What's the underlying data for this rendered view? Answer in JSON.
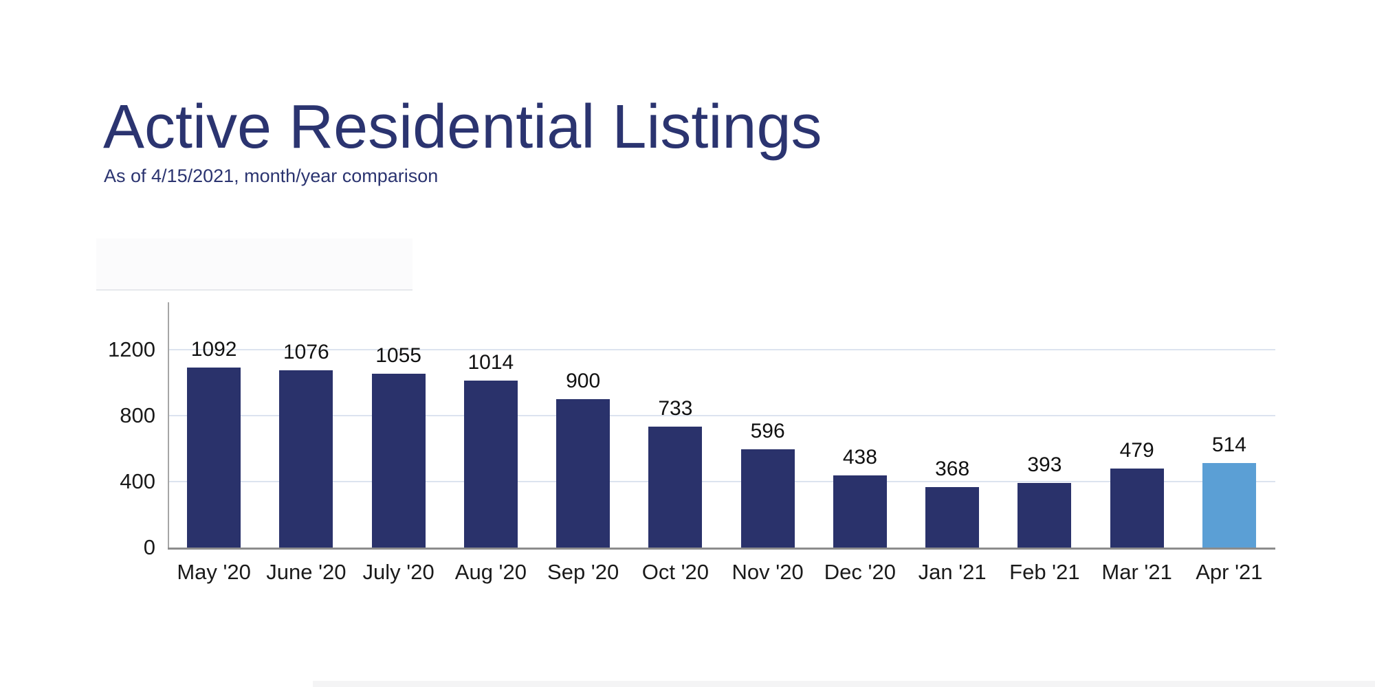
{
  "header": {
    "title": "Active Residential Listings",
    "subtitle": "As of 4/15/2021, month/year comparison",
    "title_color": "#2B3470"
  },
  "chart_data": {
    "type": "bar",
    "title": "Active Residential Listings",
    "subtitle": "As of 4/15/2021, month/year comparison",
    "categories": [
      "May '20",
      "June '20",
      "July '20",
      "Aug '20",
      "Sep '20",
      "Oct '20",
      "Nov '20",
      "Dec '20",
      "Jan '21",
      "Feb '21",
      "Mar '21",
      "Apr '21"
    ],
    "values": [
      1092,
      1076,
      1055,
      1014,
      900,
      733,
      596,
      438,
      368,
      393,
      479,
      514
    ],
    "value_labels_shown": true,
    "y_ticks": [
      0,
      400,
      800,
      1200
    ],
    "ylim": [
      0,
      1200
    ],
    "grid": true,
    "legend": "none",
    "highlight_index": 11,
    "xlabel": "",
    "ylabel": "",
    "colors": {
      "bar_default": "#2A326B",
      "bar_highlight": "#5B9FD5",
      "gridline": "#DCE3EF",
      "y_axis_line": "#A6A6A6",
      "x_axis_line": "#8C8C8C",
      "tick_label": "#1A1A1A",
      "value_label": "#111111"
    }
  }
}
